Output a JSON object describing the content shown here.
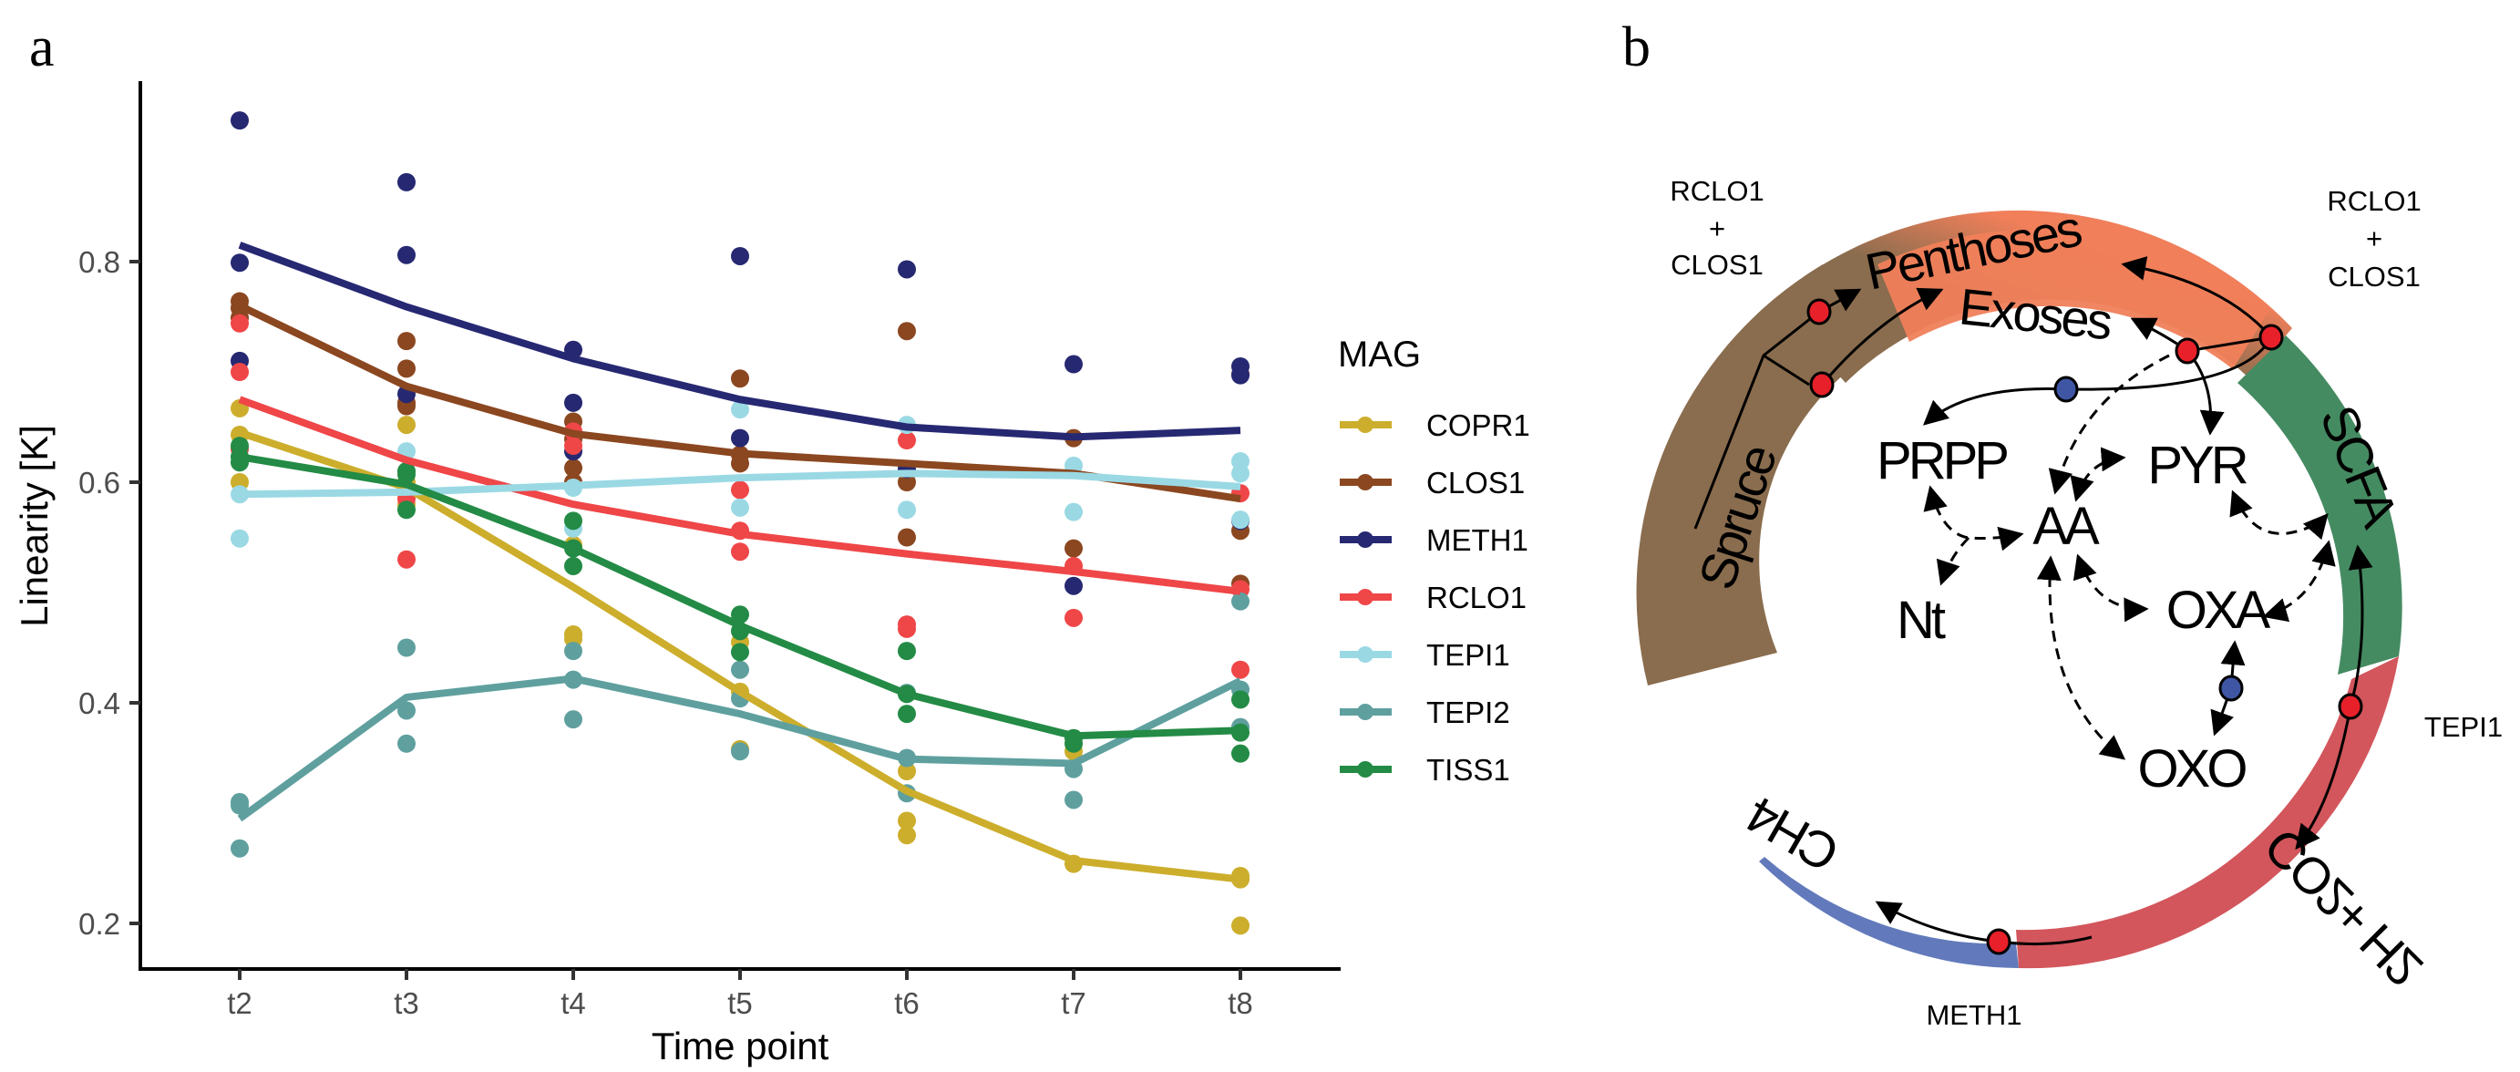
{
  "panels": {
    "a_label": "a",
    "b_label": "b"
  },
  "chart_data": [
    {
      "type": "line",
      "subtype": "scatter with smoothed trend lines",
      "title": "",
      "xlabel": "Time point",
      "ylabel": "Linearity [K]",
      "categories": [
        "t2",
        "t3",
        "t4",
        "t5",
        "t6",
        "t7",
        "t8"
      ],
      "yticks": [
        0.2,
        0.4,
        0.6,
        0.8
      ],
      "ytick_labels": [
        "0.2",
        "0.4",
        "0.6",
        "0.8"
      ],
      "ylim": [
        0.16,
        0.96
      ],
      "grid": false,
      "legend": {
        "title": "MAG",
        "position": "right"
      },
      "series": [
        {
          "name": "COPR1",
          "color": "#CCAE2C",
          "trend": [
            0.645,
            0.595,
            0.505,
            0.41,
            0.32,
            0.257,
            0.24
          ],
          "points": [
            [
              0.667,
              0.643,
              0.6
            ],
            [
              0.652,
              0.6,
              0.58
            ],
            [
              0.543,
              0.462,
              0.458
            ],
            [
              0.455,
              0.41,
              0.358
            ],
            [
              0.338,
              0.293,
              0.28
            ],
            [
              0.356,
              0.254
            ],
            [
              0.243,
              0.24,
              0.198
            ]
          ]
        },
        {
          "name": "CLOS1",
          "color": "#8B4720",
          "trend": [
            0.76,
            0.687,
            0.644,
            0.626,
            0.617,
            0.608,
            0.585
          ],
          "points": [
            [
              0.764,
              0.758,
              0.749
            ],
            [
              0.728,
              0.703,
              0.672,
              0.669
            ],
            [
              0.655,
              0.639,
              0.613,
              0.6
            ],
            [
              0.694,
              0.625,
              0.617
            ],
            [
              0.737,
              0.6,
              0.55
            ],
            [
              0.64,
              0.54
            ],
            [
              0.698,
              0.556,
              0.508
            ]
          ]
        },
        {
          "name": "METH1",
          "color": "#262872",
          "trend": [
            0.815,
            0.759,
            0.712,
            0.675,
            0.65,
            0.641,
            0.647
          ],
          "points": [
            [
              0.928,
              0.799,
              0.71
            ],
            [
              0.872,
              0.806,
              0.68
            ],
            [
              0.72,
              0.672,
              0.628
            ],
            [
              0.805,
              0.64
            ],
            [
              0.793,
              0.612
            ],
            [
              0.707,
              0.506
            ],
            [
              0.705,
              0.697,
              0.565
            ]
          ]
        },
        {
          "name": "RCLO1",
          "color": "#EF4648",
          "trend": [
            0.675,
            0.62,
            0.58,
            0.553,
            0.535,
            0.519,
            0.501
          ],
          "points": [
            [
              0.744,
              0.7,
              0.63
            ],
            [
              0.585,
              0.53
            ],
            [
              0.646,
              0.633
            ],
            [
              0.593,
              0.556,
              0.537
            ],
            [
              0.638,
              0.471,
              0.467
            ],
            [
              0.524,
              0.477
            ],
            [
              0.59,
              0.503,
              0.43
            ]
          ]
        },
        {
          "name": "TEPI1",
          "color": "#9AD9E4",
          "trend": [
            0.589,
            0.591,
            0.597,
            0.604,
            0.608,
            0.606,
            0.596
          ],
          "points": [
            [
              0.589,
              0.549
            ],
            [
              0.628,
              0.61
            ],
            [
              0.595,
              0.558
            ],
            [
              0.666,
              0.577
            ],
            [
              0.652,
              0.575
            ],
            [
              0.615,
              0.573
            ],
            [
              0.619,
              0.608,
              0.566
            ]
          ]
        },
        {
          "name": "TEPI2",
          "color": "#5FA09F",
          "trend": [
            0.295,
            0.405,
            0.422,
            0.39,
            0.349,
            0.345,
            0.42
          ],
          "points": [
            [
              0.31,
              0.307,
              0.268
            ],
            [
              0.45,
              0.393,
              0.363
            ],
            [
              0.447,
              0.421,
              0.385
            ],
            [
              0.43,
              0.404,
              0.356
            ],
            [
              0.409,
              0.35,
              0.318
            ],
            [
              0.34,
              0.312
            ],
            [
              0.492,
              0.412,
              0.378
            ]
          ]
        },
        {
          "name": "TISS1",
          "color": "#238B45",
          "trend": [
            0.623,
            0.598,
            0.54,
            0.47,
            0.408,
            0.37,
            0.375
          ],
          "points": [
            [
              0.633,
              0.623,
              0.618
            ],
            [
              0.61,
              0.607,
              0.575
            ],
            [
              0.565,
              0.54,
              0.524
            ],
            [
              0.48,
              0.465,
              0.446
            ],
            [
              0.447,
              0.408,
              0.39
            ],
            [
              0.368,
              0.363
            ],
            [
              0.403,
              0.373,
              0.354
            ]
          ]
        }
      ]
    }
  ],
  "diagram": {
    "ring_segments": [
      {
        "label": "Spruce",
        "color": "#8A6D4E"
      },
      {
        "label": "Penthoses",
        "color": "#F07F5A"
      },
      {
        "label": "Exoses",
        "color": "#F07F5A"
      },
      {
        "label": "SCFA",
        "color": "#458B62"
      },
      {
        "label": "CO2+ H2",
        "color": "#D2565C"
      },
      {
        "label": "CH4",
        "color": "#627ABB"
      }
    ],
    "nodes": [
      "PRPP",
      "PYR",
      "AA",
      "Nt",
      "OXA",
      "OXO"
    ],
    "mag_annotations": {
      "top_left": [
        "RCLO1",
        "+",
        "CLOS1"
      ],
      "top_right": [
        "RCLO1",
        "+",
        "CLOS1"
      ],
      "right": "TEPI1",
      "bottom": "METH1"
    },
    "colors": {
      "red_node": "#E8202A",
      "blue_node": "#3F56A5"
    }
  }
}
